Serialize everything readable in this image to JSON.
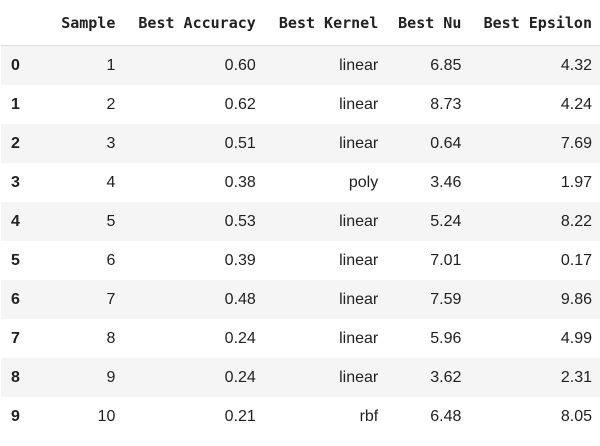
{
  "table": {
    "columns": [
      "Sample",
      "Best Accuracy",
      "Best Kernel",
      "Best Nu",
      "Best Epsilon"
    ],
    "rows": [
      {
        "index": "0",
        "cells": [
          "1",
          "0.60",
          "linear",
          "6.85",
          "4.32"
        ]
      },
      {
        "index": "1",
        "cells": [
          "2",
          "0.62",
          "linear",
          "8.73",
          "4.24"
        ]
      },
      {
        "index": "2",
        "cells": [
          "3",
          "0.51",
          "linear",
          "0.64",
          "7.69"
        ]
      },
      {
        "index": "3",
        "cells": [
          "4",
          "0.38",
          "poly",
          "3.46",
          "1.97"
        ]
      },
      {
        "index": "4",
        "cells": [
          "5",
          "0.53",
          "linear",
          "5.24",
          "8.22"
        ]
      },
      {
        "index": "5",
        "cells": [
          "6",
          "0.39",
          "linear",
          "7.01",
          "0.17"
        ]
      },
      {
        "index": "6",
        "cells": [
          "7",
          "0.48",
          "linear",
          "7.59",
          "9.86"
        ]
      },
      {
        "index": "7",
        "cells": [
          "8",
          "0.24",
          "linear",
          "5.96",
          "4.99"
        ]
      },
      {
        "index": "8",
        "cells": [
          "9",
          "0.24",
          "linear",
          "3.62",
          "2.31"
        ]
      },
      {
        "index": "9",
        "cells": [
          "10",
          "0.21",
          "rbf",
          "6.48",
          "8.05"
        ]
      }
    ]
  }
}
